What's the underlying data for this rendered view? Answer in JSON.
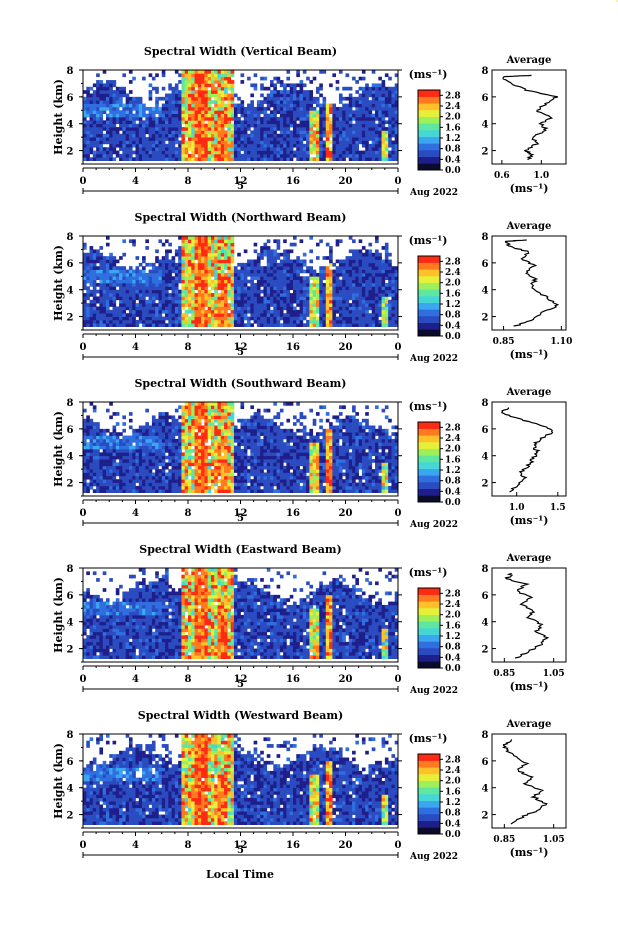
{
  "figure": {
    "xlabel": "Local Time",
    "date_label": "Aug 2022",
    "day_marker": "5",
    "colorbar_unit": "(ms⁻¹)",
    "average_title": "Average",
    "average_xlabel": "(ms⁻¹)"
  },
  "colors": {
    "colormap": [
      "#0b0b2e",
      "#1f1f8c",
      "#2a4cc0",
      "#2f6fe0",
      "#3aa7f0",
      "#46d6d6",
      "#5fe6a0",
      "#9ef05a",
      "#e6f03a",
      "#ffc02a",
      "#ff7a1e",
      "#ff2a14"
    ]
  },
  "chart_data": [
    {
      "type": "heatmap",
      "title": "Spectral Width (Vertical Beam)",
      "ylabel": "Height (km)",
      "x_ticks": [
        "0",
        "4",
        "8",
        "12",
        "16",
        "20",
        "0"
      ],
      "y_ticks": [
        "2",
        "4",
        "6",
        "8"
      ],
      "xlim": [
        0,
        24
      ],
      "ylim": [
        1,
        8
      ],
      "colorbar_ticks": [
        "0.0",
        "0.4",
        "0.8",
        "1.2",
        "1.6",
        "2.0",
        "2.4",
        "2.8"
      ],
      "colorbar_range": [
        0.0,
        3.0
      ],
      "average": {
        "title": "Average",
        "xlabel": "(ms⁻¹)",
        "x_ticks": [
          "0.6",
          "1.0"
        ],
        "xlim": [
          0.5,
          1.25
        ],
        "ylim": [
          1,
          8
        ],
        "y_ticks": [
          "2",
          "4",
          "6",
          "8"
        ],
        "profile": [
          [
            0.86,
            1.3
          ],
          [
            0.9,
            1.7
          ],
          [
            0.85,
            2.0
          ],
          [
            0.95,
            2.5
          ],
          [
            0.9,
            3.0
          ],
          [
            1.05,
            3.5
          ],
          [
            1.0,
            4.0
          ],
          [
            1.1,
            4.5
          ],
          [
            0.95,
            5.0
          ],
          [
            1.05,
            5.5
          ],
          [
            1.15,
            6.0
          ],
          [
            0.85,
            6.5
          ],
          [
            0.7,
            7.0
          ],
          [
            0.6,
            7.5
          ],
          [
            0.9,
            7.6
          ]
        ]
      }
    },
    {
      "type": "heatmap",
      "title": "Spectral Width (Northward Beam)",
      "ylabel": "Height (km)",
      "x_ticks": [
        "0",
        "4",
        "8",
        "12",
        "16",
        "20",
        "0"
      ],
      "y_ticks": [
        "2",
        "4",
        "6",
        "8"
      ],
      "xlim": [
        0,
        24
      ],
      "ylim": [
        1,
        8
      ],
      "colorbar_ticks": [
        "0.0",
        "0.4",
        "0.8",
        "1.2",
        "1.6",
        "2.0",
        "2.4",
        "2.8"
      ],
      "colorbar_range": [
        0.0,
        3.0
      ],
      "average": {
        "title": "Average",
        "xlabel": "(ms⁻¹)",
        "x_ticks": [
          "0.85",
          "1.10"
        ],
        "xlim": [
          0.8,
          1.12
        ],
        "ylim": [
          1,
          8
        ],
        "y_ticks": [
          "2",
          "4",
          "6",
          "8"
        ],
        "profile": [
          [
            0.9,
            1.3
          ],
          [
            0.98,
            1.8
          ],
          [
            1.02,
            2.3
          ],
          [
            1.08,
            2.8
          ],
          [
            1.05,
            3.3
          ],
          [
            1.0,
            3.8
          ],
          [
            0.97,
            4.3
          ],
          [
            0.99,
            4.8
          ],
          [
            0.95,
            5.3
          ],
          [
            0.98,
            5.8
          ],
          [
            0.93,
            6.3
          ],
          [
            0.96,
            6.8
          ],
          [
            0.88,
            7.2
          ],
          [
            0.86,
            7.6
          ],
          [
            0.95,
            7.7
          ]
        ]
      }
    },
    {
      "type": "heatmap",
      "title": "Spectral Width (Southward Beam)",
      "ylabel": "Height (km)",
      "x_ticks": [
        "0",
        "4",
        "8",
        "12",
        "16",
        "20",
        "0"
      ],
      "y_ticks": [
        "2",
        "4",
        "6",
        "8"
      ],
      "xlim": [
        0,
        24
      ],
      "ylim": [
        1,
        8
      ],
      "colorbar_ticks": [
        "0.0",
        "0.4",
        "0.8",
        "1.2",
        "1.6",
        "2.0",
        "2.4",
        "2.8"
      ],
      "colorbar_range": [
        0.0,
        3.0
      ],
      "average": {
        "title": "Average",
        "xlabel": "(ms⁻¹)",
        "x_ticks": [
          "1.0",
          "1.5"
        ],
        "xlim": [
          0.7,
          1.6
        ],
        "ylim": [
          1,
          8
        ],
        "y_ticks": [
          "2",
          "4",
          "6",
          "8"
        ],
        "profile": [
          [
            0.9,
            1.3
          ],
          [
            1.0,
            1.8
          ],
          [
            1.1,
            2.3
          ],
          [
            1.05,
            2.8
          ],
          [
            1.15,
            3.3
          ],
          [
            1.2,
            3.8
          ],
          [
            1.25,
            4.3
          ],
          [
            1.2,
            4.8
          ],
          [
            1.3,
            5.3
          ],
          [
            1.45,
            5.8
          ],
          [
            1.3,
            6.3
          ],
          [
            1.0,
            6.8
          ],
          [
            0.8,
            7.2
          ],
          [
            0.9,
            7.6
          ]
        ]
      }
    },
    {
      "type": "heatmap",
      "title": "Spectral Width (Eastward Beam)",
      "ylabel": "Height (km)",
      "x_ticks": [
        "0",
        "4",
        "8",
        "12",
        "16",
        "20",
        "0"
      ],
      "y_ticks": [
        "2",
        "4",
        "6",
        "8"
      ],
      "xlim": [
        0,
        24
      ],
      "ylim": [
        1,
        8
      ],
      "colorbar_ticks": [
        "0.0",
        "0.4",
        "0.8",
        "1.2",
        "1.6",
        "2.0",
        "2.4",
        "2.8"
      ],
      "colorbar_range": [
        0.0,
        3.0
      ],
      "average": {
        "title": "Average",
        "xlabel": "(ms⁻¹)",
        "x_ticks": [
          "0.85",
          "1.05"
        ],
        "xlim": [
          0.8,
          1.1
        ],
        "ylim": [
          1,
          8
        ],
        "y_ticks": [
          "2",
          "4",
          "6",
          "8"
        ],
        "profile": [
          [
            0.9,
            1.3
          ],
          [
            0.95,
            1.8
          ],
          [
            1.0,
            2.3
          ],
          [
            1.02,
            2.8
          ],
          [
            0.98,
            3.3
          ],
          [
            1.0,
            3.8
          ],
          [
            0.95,
            4.3
          ],
          [
            0.97,
            4.8
          ],
          [
            0.92,
            5.3
          ],
          [
            0.96,
            5.8
          ],
          [
            0.9,
            6.3
          ],
          [
            0.94,
            6.8
          ],
          [
            0.86,
            7.2
          ],
          [
            0.88,
            7.6
          ]
        ]
      }
    },
    {
      "type": "heatmap",
      "title": "Spectral Width (Westward Beam)",
      "ylabel": "Height (km)",
      "x_ticks": [
        "0",
        "4",
        "8",
        "12",
        "16",
        "20",
        "0"
      ],
      "y_ticks": [
        "2",
        "4",
        "6",
        "8"
      ],
      "xlim": [
        0,
        24
      ],
      "ylim": [
        1,
        8
      ],
      "colorbar_ticks": [
        "0.0",
        "0.4",
        "0.8",
        "1.2",
        "1.6",
        "2.0",
        "2.4",
        "2.8"
      ],
      "colorbar_range": [
        0.0,
        3.0
      ],
      "average": {
        "title": "Average",
        "xlabel": "(ms⁻¹)",
        "x_ticks": [
          "0.85",
          "1.05"
        ],
        "xlim": [
          0.8,
          1.1
        ],
        "ylim": [
          1,
          8
        ],
        "y_ticks": [
          "2",
          "4",
          "6",
          "8"
        ],
        "profile": [
          [
            0.88,
            1.3
          ],
          [
            0.92,
            1.8
          ],
          [
            0.98,
            2.3
          ],
          [
            1.02,
            2.8
          ],
          [
            0.97,
            3.3
          ],
          [
            1.0,
            3.8
          ],
          [
            0.93,
            4.3
          ],
          [
            0.96,
            4.8
          ],
          [
            0.9,
            5.3
          ],
          [
            0.94,
            5.8
          ],
          [
            0.9,
            6.3
          ],
          [
            0.86,
            6.8
          ],
          [
            0.85,
            7.2
          ],
          [
            0.88,
            7.6
          ]
        ]
      }
    }
  ]
}
